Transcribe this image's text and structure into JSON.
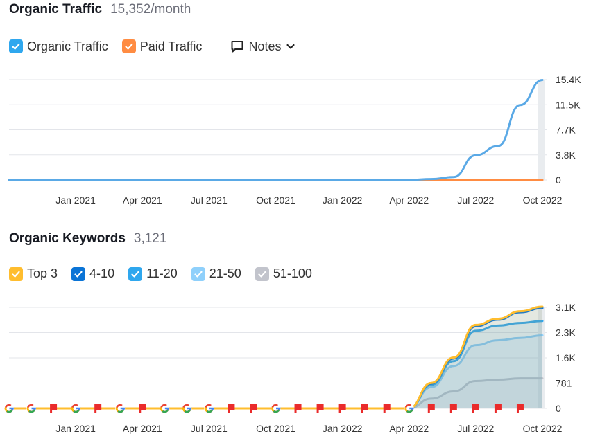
{
  "traffic": {
    "title": "Organic Traffic",
    "metric": "15,352/month",
    "legend": [
      {
        "label": "Organic Traffic",
        "color": "#2fa7ee",
        "checked": true
      },
      {
        "label": "Paid Traffic",
        "color": "#ff8c42",
        "checked": true
      }
    ],
    "notes_label": "Notes"
  },
  "keywords": {
    "title": "Organic Keywords",
    "metric": "3,121",
    "legend": [
      {
        "label": "Top 3",
        "color": "#ffbd2e",
        "checked": true
      },
      {
        "label": "4-10",
        "color": "#0a74d6",
        "checked": true
      },
      {
        "label": "11-20",
        "color": "#2fa7ee",
        "checked": true
      },
      {
        "label": "21-50",
        "color": "#8fd0fb",
        "checked": true
      },
      {
        "label": "51-100",
        "color": "#c2c4cc",
        "checked": true
      }
    ]
  },
  "chart_data": [
    {
      "type": "line",
      "x": [
        "2020-10",
        "2020-11",
        "2020-12",
        "2021-01",
        "2021-02",
        "2021-03",
        "2021-04",
        "2021-05",
        "2021-06",
        "2021-07",
        "2021-08",
        "2021-09",
        "2021-10",
        "2021-11",
        "2021-12",
        "2022-01",
        "2022-02",
        "2022-03",
        "2022-04",
        "2022-05",
        "2022-06",
        "2022-07",
        "2022-08",
        "2022-09",
        "2022-10"
      ],
      "xticks": [
        "Jan 2021",
        "Apr 2021",
        "Jul 2021",
        "Oct 2021",
        "Jan 2022",
        "Apr 2022",
        "Jul 2022",
        "Oct 2022"
      ],
      "yticks": [
        "15.4K",
        "11.5K",
        "7.7K",
        "3.8K",
        "0"
      ],
      "ylim": [
        0,
        15400
      ],
      "series": [
        {
          "name": "Organic Traffic",
          "color": "#5aa9e6",
          "values": [
            0,
            0,
            0,
            0,
            0,
            0,
            0,
            0,
            0,
            0,
            0,
            0,
            0,
            0,
            0,
            0,
            0,
            0,
            0,
            150,
            450,
            3800,
            5200,
            11500,
            15352
          ]
        },
        {
          "name": "Paid Traffic",
          "color": "#ff8c42",
          "values": [
            0,
            0,
            0,
            0,
            0,
            0,
            0,
            0,
            0,
            0,
            0,
            0,
            0,
            0,
            0,
            0,
            0,
            0,
            0,
            0,
            0,
            0,
            0,
            0,
            0
          ]
        }
      ]
    },
    {
      "type": "area",
      "x": [
        "2020-10",
        "2020-11",
        "2020-12",
        "2021-01",
        "2021-02",
        "2021-03",
        "2021-04",
        "2021-05",
        "2021-06",
        "2021-07",
        "2021-08",
        "2021-09",
        "2021-10",
        "2021-11",
        "2021-12",
        "2022-01",
        "2022-02",
        "2022-03",
        "2022-04",
        "2022-05",
        "2022-06",
        "2022-07",
        "2022-08",
        "2022-09",
        "2022-10"
      ],
      "xticks": [
        "Jan 2021",
        "Apr 2021",
        "Jul 2021",
        "Oct 2021",
        "Jan 2022",
        "Apr 2022",
        "Jul 2022",
        "Oct 2022"
      ],
      "yticks": [
        "3.1K",
        "2.3K",
        "1.6K",
        "781",
        "0"
      ],
      "ylim": [
        0,
        3100
      ],
      "series": [
        {
          "name": "Top 3",
          "color": "#ffbd2e",
          "values": [
            0,
            0,
            0,
            0,
            0,
            0,
            0,
            0,
            0,
            0,
            0,
            0,
            0,
            0,
            0,
            0,
            0,
            0,
            0,
            780,
            1560,
            2560,
            2750,
            2980,
            3121
          ]
        },
        {
          "name": "4-10",
          "color": "#0a74d6",
          "values": [
            0,
            0,
            0,
            0,
            0,
            0,
            0,
            0,
            0,
            0,
            0,
            0,
            0,
            0,
            0,
            0,
            0,
            0,
            0,
            760,
            1530,
            2520,
            2720,
            2950,
            3080
          ]
        },
        {
          "name": "11-20",
          "color": "#2fa7ee",
          "values": [
            0,
            0,
            0,
            0,
            0,
            0,
            0,
            0,
            0,
            0,
            0,
            0,
            0,
            0,
            0,
            0,
            0,
            0,
            0,
            720,
            1450,
            2380,
            2540,
            2620,
            2680
          ]
        },
        {
          "name": "21-50",
          "color": "#8fd0fb",
          "values": [
            0,
            0,
            0,
            0,
            0,
            0,
            0,
            0,
            0,
            0,
            0,
            0,
            0,
            0,
            0,
            0,
            0,
            0,
            0,
            650,
            1300,
            1940,
            2090,
            2160,
            2240
          ]
        },
        {
          "name": "51-100",
          "color": "#c2c4cc",
          "values": [
            0,
            0,
            0,
            0,
            0,
            0,
            0,
            0,
            0,
            0,
            0,
            0,
            0,
            0,
            0,
            0,
            0,
            0,
            0,
            300,
            520,
            840,
            880,
            920,
            920
          ]
        }
      ],
      "markers": [
        {
          "type": "google-icon",
          "month": "2020-10"
        },
        {
          "type": "google-icon",
          "month": "2020-11"
        },
        {
          "type": "flag-icon",
          "month": "2020-12"
        },
        {
          "type": "google-icon",
          "month": "2021-01"
        },
        {
          "type": "flag-icon",
          "month": "2021-02"
        },
        {
          "type": "google-icon",
          "month": "2021-03"
        },
        {
          "type": "flag-icon",
          "month": "2021-04"
        },
        {
          "type": "google-icon",
          "month": "2021-05"
        },
        {
          "type": "google-icon",
          "month": "2021-06"
        },
        {
          "type": "google-icon",
          "month": "2021-07"
        },
        {
          "type": "flag-icon",
          "month": "2021-08"
        },
        {
          "type": "flag-icon",
          "month": "2021-09"
        },
        {
          "type": "google-icon",
          "month": "2021-10"
        },
        {
          "type": "flag-icon",
          "month": "2021-11"
        },
        {
          "type": "flag-icon",
          "month": "2021-12"
        },
        {
          "type": "flag-icon",
          "month": "2022-01"
        },
        {
          "type": "flag-icon",
          "month": "2022-02"
        },
        {
          "type": "flag-icon",
          "month": "2022-03"
        },
        {
          "type": "google-icon",
          "month": "2022-04"
        },
        {
          "type": "flag-icon",
          "month": "2022-05"
        },
        {
          "type": "flag-icon",
          "month": "2022-06"
        },
        {
          "type": "flag-icon",
          "month": "2022-07"
        },
        {
          "type": "flag-icon",
          "month": "2022-08"
        },
        {
          "type": "flag-icon",
          "month": "2022-09"
        }
      ]
    }
  ]
}
